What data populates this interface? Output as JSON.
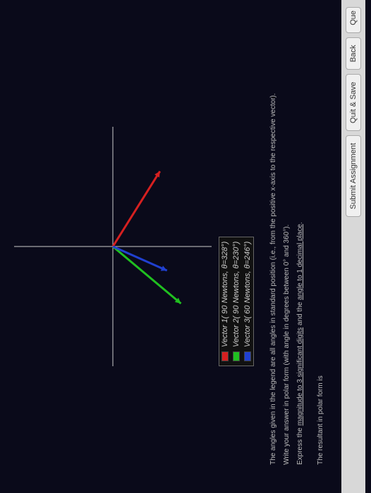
{
  "chart": {
    "type": "vector-plot",
    "background_color": "#0a0a1a",
    "axis_color": "#cccccc",
    "xlim": [
      -170,
      170
    ],
    "ylim": [
      -140,
      140
    ],
    "origin_x": 170,
    "origin_y": 140,
    "axis_line_width": 1,
    "vectors": [
      {
        "name": "Vector 1",
        "magnitude": 90,
        "angle_deg": 328,
        "color": "#d62020",
        "line_width": 3
      },
      {
        "name": "Vector 2",
        "magnitude": 90,
        "angle_deg": 230,
        "color": "#20c020",
        "line_width": 3
      },
      {
        "name": "Vector 3",
        "magnitude": 60,
        "angle_deg": 246,
        "color": "#2040d0",
        "line_width": 3
      }
    ],
    "vector_scale": 1.4,
    "arrowhead_size": 8
  },
  "legend": {
    "rows": [
      {
        "swatch": "#d62020",
        "label": "Vector 1( 90 Newtons, θ=328°)"
      },
      {
        "swatch": "#20c020",
        "label": "Vector 2( 90 Newtons, θ=230°)"
      },
      {
        "swatch": "#2040d0",
        "label": "Vector 3( 60 Newtons, θ=246°)"
      }
    ]
  },
  "text": {
    "line1": "The angles given in the legend are all angles in standard position (i.e., from the positive x-axis to the respective vector).",
    "line2": "Write your answer in polar form (with angle in degrees between 0° and 360°).",
    "line3_a": "Express the ",
    "line3_b": "magnitude to 3 significant digits",
    "line3_c": " and the ",
    "line3_d": "angle to 1 decimal place",
    "line3_e": ".",
    "answer_label": "The resultant in polar form is"
  },
  "buttons": {
    "submit": "Submit Assignment",
    "quit": "Quit & Save",
    "back": "Back",
    "question": "Que"
  }
}
